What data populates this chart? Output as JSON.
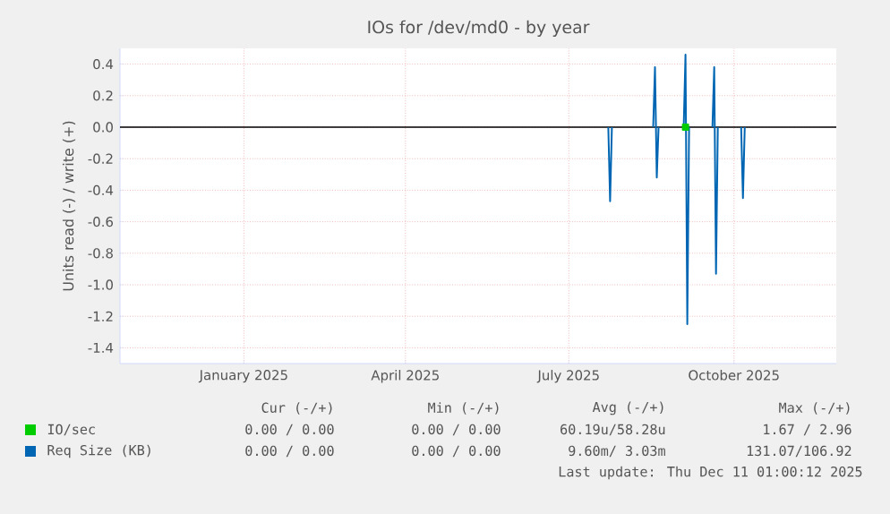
{
  "chart_data": {
    "type": "line",
    "title": "IOs for /dev/md0 - by year",
    "ylabel": "Units read (-) / write (+)",
    "xlim": [
      "2024-11-08",
      "2025-12-12"
    ],
    "xticks": [
      {
        "value": "2025-01-16",
        "label": "January 2025"
      },
      {
        "value": "2025-04-16",
        "label": "April 2025"
      },
      {
        "value": "2025-07-16",
        "label": "July 2025"
      },
      {
        "value": "2025-10-16",
        "label": "October 2025"
      }
    ],
    "ylim": [
      -1.5,
      0.5
    ],
    "yticks": [
      -1.4,
      -1.2,
      {
        "value": -1,
        "label": "-1.0"
      },
      -0.8,
      -0.6,
      -0.4,
      -0.2,
      {
        "value": 0,
        "label": "0.0"
      },
      0.2,
      0.4
    ],
    "grid": true,
    "legend": "bottom",
    "ref_lines": [
      {
        "axis": "y",
        "value": 0,
        "color": "#000000"
      }
    ],
    "series": [
      {
        "name": "IO/sec",
        "color": "#00cc00",
        "marker": "square",
        "x": [
          "2025-09-19"
        ],
        "values": [
          0
        ]
      },
      {
        "name": "Req Size (KB)",
        "color": "#0066b3",
        "x": [
          "2025-08-07",
          "2025-08-08",
          "2025-08-09",
          "2025-08-20",
          "2025-09-01",
          "2025-09-02",
          "2025-09-03",
          "2025-09-04",
          "2025-09-10",
          "2025-09-18",
          "2025-09-19",
          "2025-09-20",
          "2025-09-21",
          "2025-09-28",
          "2025-10-04",
          "2025-10-05",
          "2025-10-06",
          "2025-10-07",
          "2025-10-14",
          "2025-10-20",
          "2025-10-21",
          "2025-10-22"
        ],
        "values": [
          0,
          -0.47,
          0,
          null,
          0,
          0.38,
          -0.32,
          0,
          null,
          0,
          0.46,
          -1.25,
          0,
          null,
          0,
          0.38,
          -0.93,
          0,
          null,
          0,
          -0.45,
          0
        ]
      }
    ],
    "annotations": [
      "Cur (-/+)",
      "Min (-/+)",
      "Avg (-/+)",
      "Max (-/+)",
      "0.00 / 0.00",
      "0.00 / 0.00",
      "60.19u/58.28u",
      "1.67 / 2.96",
      "0.00 / 0.00",
      "0.00 / 0.00",
      "9.60m/ 3.03m",
      "131.07/106.92",
      "Last update: Thu Dec 11 01:00:12 2025"
    ]
  }
}
